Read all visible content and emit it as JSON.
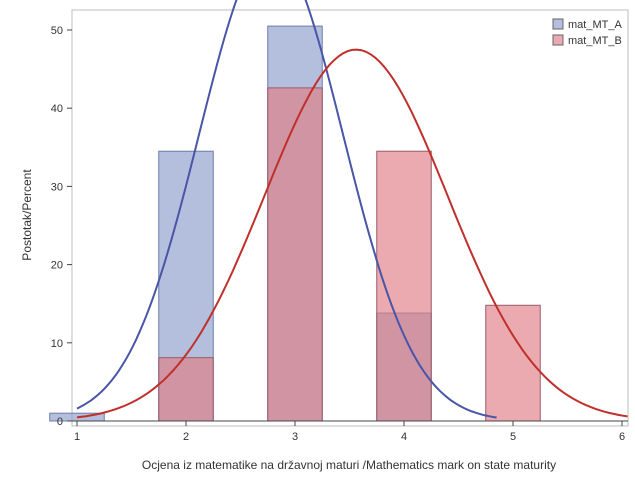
{
  "chart_data": {
    "type": "bar",
    "title": "",
    "xlabel": "Ocjena iz matematike na državnoj maturi /Mathematics mark on state maturity",
    "ylabel": "Postotak/Percent",
    "xlim": [
      1,
      6
    ],
    "ylim": [
      0,
      50
    ],
    "x_ticks": [
      "1",
      "2",
      "3",
      "4",
      "5",
      "6"
    ],
    "y_ticks": [
      "0",
      "10",
      "20",
      "30",
      "40",
      "50"
    ],
    "bar_width": 0.5,
    "legend_position": "top-right",
    "grid": false,
    "series": [
      {
        "name": "mat_MT_A",
        "color": "#8c9ccb",
        "curve_color": "#4a55a8",
        "x": [
          1,
          2,
          3,
          4
        ],
        "values": [
          1.0,
          34.5,
          50.5,
          13.8
        ],
        "normal_mean": 2.78,
        "normal_sd": 0.66,
        "curve_range": [
          1,
          4.85
        ]
      },
      {
        "name": "mat_MT_B",
        "color": "#de7c84",
        "curve_color": "#c0302b",
        "x": [
          2,
          3,
          4,
          5
        ],
        "values": [
          8.1,
          42.6,
          34.5,
          14.8
        ],
        "normal_mean": 3.56,
        "normal_sd": 0.84,
        "curve_range": [
          1,
          6.05
        ]
      }
    ]
  }
}
